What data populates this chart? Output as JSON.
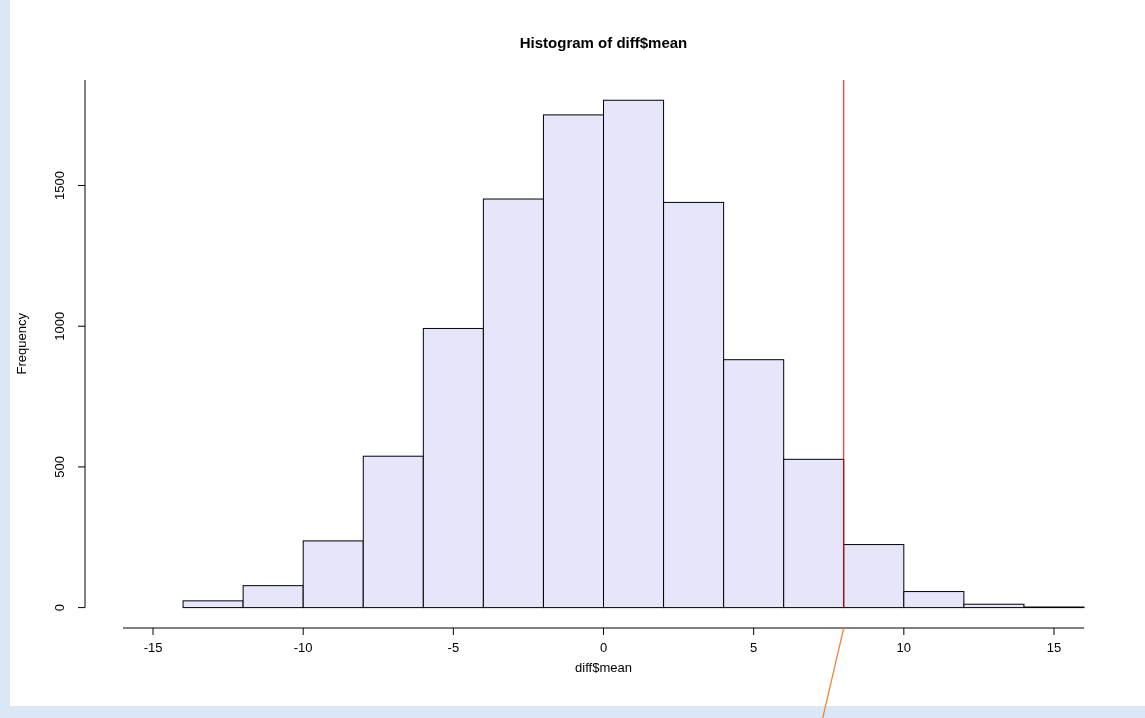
{
  "chart_data": {
    "type": "histogram",
    "title": "Histogram of diff$mean",
    "xlabel": "diff$mean",
    "ylabel": "Frequency",
    "bins": [
      -16,
      -14,
      -12,
      -10,
      -8,
      -6,
      -4,
      -2,
      0,
      2,
      4,
      6,
      8,
      10,
      12,
      14,
      16
    ],
    "values": [
      0,
      24,
      78,
      237,
      538,
      992,
      1452,
      1751,
      1803,
      1440,
      881,
      527,
      224,
      57,
      12,
      2
    ],
    "color": "#e6e6fa",
    "xlim": [
      -16,
      16
    ],
    "xticks": [
      -15,
      -10,
      -5,
      0,
      5,
      10,
      15
    ],
    "ylim": [
      0,
      1875
    ],
    "yticks": [
      0,
      500,
      1000,
      1500
    ],
    "grid": false,
    "ref_lines": [
      {
        "axis": "x",
        "value": 8,
        "color": "#ff0000"
      }
    ]
  }
}
